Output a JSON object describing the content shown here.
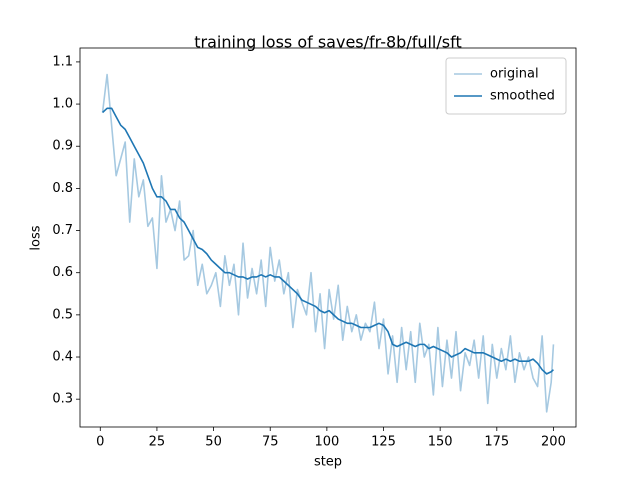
{
  "chart_data": {
    "type": "line",
    "title": "training loss of saves/fr-8b/full/sft",
    "x_label": "step",
    "y_label": "loss",
    "x": [
      1,
      3,
      5,
      7,
      9,
      11,
      13,
      15,
      17,
      19,
      21,
      23,
      25,
      27,
      29,
      31,
      33,
      35,
      37,
      39,
      41,
      43,
      45,
      47,
      49,
      51,
      53,
      55,
      57,
      59,
      61,
      63,
      65,
      67,
      69,
      71,
      73,
      75,
      77,
      79,
      81,
      83,
      85,
      87,
      89,
      91,
      93,
      95,
      97,
      99,
      101,
      103,
      105,
      107,
      109,
      111,
      113,
      115,
      117,
      119,
      121,
      123,
      125,
      127,
      129,
      131,
      133,
      135,
      137,
      139,
      141,
      143,
      145,
      147,
      149,
      151,
      153,
      155,
      157,
      159,
      161,
      163,
      165,
      167,
      169,
      171,
      173,
      175,
      177,
      179,
      181,
      183,
      185,
      187,
      189,
      191,
      193,
      195,
      197,
      199,
      200
    ],
    "series": [
      {
        "name": "original",
        "color": "#a6c9e1",
        "values": [
          0.98,
          1.07,
          0.95,
          0.83,
          0.87,
          0.91,
          0.72,
          0.87,
          0.78,
          0.82,
          0.71,
          0.73,
          0.61,
          0.83,
          0.72,
          0.75,
          0.7,
          0.77,
          0.63,
          0.64,
          0.7,
          0.57,
          0.62,
          0.55,
          0.57,
          0.6,
          0.52,
          0.64,
          0.57,
          0.62,
          0.5,
          0.67,
          0.54,
          0.61,
          0.55,
          0.63,
          0.52,
          0.66,
          0.58,
          0.63,
          0.55,
          0.6,
          0.47,
          0.56,
          0.53,
          0.5,
          0.6,
          0.46,
          0.55,
          0.42,
          0.56,
          0.49,
          0.57,
          0.44,
          0.52,
          0.46,
          0.5,
          0.44,
          0.48,
          0.46,
          0.53,
          0.42,
          0.49,
          0.36,
          0.45,
          0.34,
          0.47,
          0.37,
          0.46,
          0.34,
          0.48,
          0.4,
          0.43,
          0.31,
          0.47,
          0.33,
          0.44,
          0.35,
          0.46,
          0.32,
          0.41,
          0.38,
          0.44,
          0.35,
          0.45,
          0.29,
          0.43,
          0.35,
          0.42,
          0.37,
          0.45,
          0.34,
          0.41,
          0.37,
          0.4,
          0.35,
          0.33,
          0.45,
          0.27,
          0.34,
          0.43
        ]
      },
      {
        "name": "smoothed",
        "color": "#1f77b4",
        "values": [
          0.98,
          0.99,
          0.99,
          0.97,
          0.95,
          0.94,
          0.92,
          0.9,
          0.88,
          0.86,
          0.83,
          0.8,
          0.78,
          0.78,
          0.77,
          0.75,
          0.75,
          0.73,
          0.72,
          0.7,
          0.68,
          0.66,
          0.655,
          0.645,
          0.63,
          0.62,
          0.61,
          0.6,
          0.6,
          0.595,
          0.59,
          0.59,
          0.585,
          0.59,
          0.59,
          0.595,
          0.59,
          0.595,
          0.59,
          0.59,
          0.58,
          0.57,
          0.56,
          0.55,
          0.535,
          0.53,
          0.525,
          0.52,
          0.51,
          0.505,
          0.51,
          0.5,
          0.49,
          0.485,
          0.48,
          0.48,
          0.475,
          0.47,
          0.47,
          0.47,
          0.475,
          0.48,
          0.475,
          0.46,
          0.43,
          0.425,
          0.43,
          0.435,
          0.43,
          0.425,
          0.43,
          0.43,
          0.42,
          0.425,
          0.42,
          0.415,
          0.41,
          0.4,
          0.405,
          0.41,
          0.42,
          0.415,
          0.41,
          0.41,
          0.41,
          0.405,
          0.4,
          0.395,
          0.39,
          0.395,
          0.39,
          0.395,
          0.39,
          0.39,
          0.39,
          0.395,
          0.385,
          0.37,
          0.36,
          0.365,
          0.37
        ]
      }
    ],
    "xlim": [
      -8.95,
      209.95
    ],
    "xticks": [
      0,
      25,
      50,
      75,
      100,
      125,
      150,
      175,
      200
    ],
    "ylim": [
      0.234,
      1.133
    ],
    "yticks": [
      0.3,
      0.4,
      0.5,
      0.6,
      0.7,
      0.8,
      0.9,
      {
        "value": 1,
        "label": "1.0"
      },
      1.1
    ],
    "legend": "upper right"
  }
}
